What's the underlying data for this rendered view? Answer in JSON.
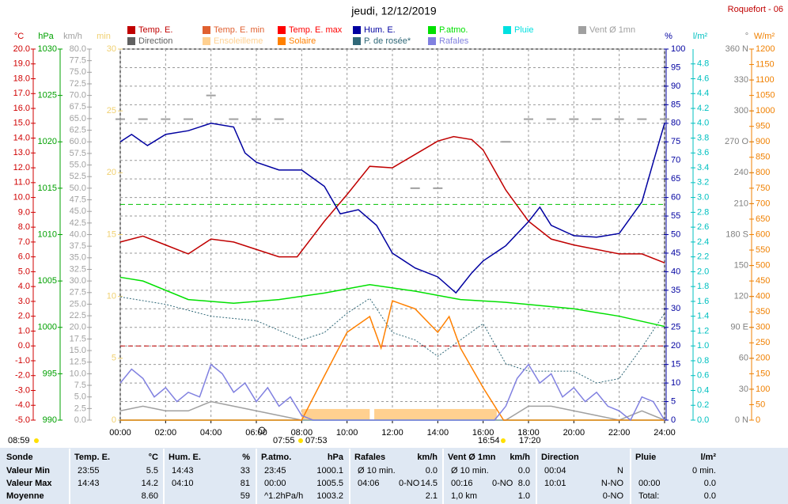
{
  "chart_data": {
    "type": "line",
    "title": "jeudi, 12/12/2019",
    "station": "Roquefort - 06",
    "xlim": [
      0,
      24
    ],
    "xticks": [
      {
        "value": 0,
        "label": "00:00"
      },
      {
        "value": 2,
        "label": "02:00"
      },
      {
        "value": 4,
        "label": "04:00"
      },
      {
        "value": 6,
        "label": "06:00"
      },
      {
        "value": 8,
        "label": "08:00"
      },
      {
        "value": 10,
        "label": "10:00"
      },
      {
        "value": 12,
        "label": "12:00"
      },
      {
        "value": 14,
        "label": "14:00"
      },
      {
        "value": 16,
        "label": "16:00"
      },
      {
        "value": 18,
        "label": "18:00"
      },
      {
        "value": 20,
        "label": "20:00"
      },
      {
        "value": 22,
        "label": "22:00"
      },
      {
        "value": 24,
        "label": "24:00"
      }
    ],
    "grid": true,
    "y_label": "°C",
    "y_color": "#d00000",
    "ylim": [
      -5,
      20
    ],
    "yticks": [
      {
        "value": -5,
        "label": "-5.0"
      },
      {
        "value": -4,
        "label": "-4.0"
      },
      {
        "value": -3,
        "label": "-3.0"
      },
      {
        "value": -2,
        "label": "-2.0"
      },
      {
        "value": -1,
        "label": "-1.0"
      },
      {
        "value": 0,
        "label": "0.0"
      },
      {
        "value": 1,
        "label": "1.0"
      },
      {
        "value": 2,
        "label": "2.0"
      },
      {
        "value": 3,
        "label": "3.0"
      },
      {
        "value": 4,
        "label": "4.0"
      },
      {
        "value": 5,
        "label": "5.0"
      },
      {
        "value": 6,
        "label": "6.0"
      },
      {
        "value": 7,
        "label": "7.0"
      },
      {
        "value": 8,
        "label": "8.0"
      },
      {
        "value": 9,
        "label": "9.0"
      },
      {
        "value": 10,
        "label": "10.0"
      },
      {
        "value": 11,
        "label": "11.0"
      },
      {
        "value": 12,
        "label": "12.0"
      },
      {
        "value": 13,
        "label": "13.0"
      },
      {
        "value": 14,
        "label": "14.0"
      },
      {
        "value": 15,
        "label": "15.0"
      },
      {
        "value": 16,
        "label": "16.0"
      },
      {
        "value": 17,
        "label": "17.0"
      },
      {
        "value": 18,
        "label": "18.0"
      },
      {
        "value": 19,
        "label": "19.0"
      },
      {
        "value": 20,
        "label": "20.0"
      }
    ],
    "y2_label": "hPa",
    "y2_color": "#00a000",
    "y2lim": [
      990,
      1030
    ],
    "y2ticks": [
      990,
      995,
      1000,
      1005,
      1010,
      1015,
      1020,
      1025,
      1030
    ],
    "y3_label": "km/h",
    "y3_color": "#a0a0a0",
    "y3lim": [
      0,
      80
    ],
    "y3ticks": [
      {
        "value": 0,
        "label": "0.0"
      },
      {
        "value": 2.5,
        "label": "2.5"
      },
      {
        "value": 5,
        "label": "5.0"
      },
      {
        "value": 7.5,
        "label": "7.5"
      },
      {
        "value": 10,
        "label": "10.0"
      },
      {
        "value": 12.5,
        "label": "12.5"
      },
      {
        "value": 15,
        "label": "15.0"
      },
      {
        "value": 17.5,
        "label": "17.5"
      },
      {
        "value": 20,
        "label": "20.0"
      },
      {
        "value": 22.5,
        "label": "22.5"
      },
      {
        "value": 25,
        "label": "25.0"
      },
      {
        "value": 27.5,
        "label": "27.5"
      },
      {
        "value": 30,
        "label": "30.0"
      },
      {
        "value": 32.5,
        "label": "32.5"
      },
      {
        "value": 35,
        "label": "35.0"
      },
      {
        "value": 37.5,
        "label": "37.5"
      },
      {
        "value": 40,
        "label": "40.0"
      },
      {
        "value": 42.5,
        "label": "42.5"
      },
      {
        "value": 45,
        "label": "45.0"
      },
      {
        "value": 47.5,
        "label": "47.5"
      },
      {
        "value": 50,
        "label": "50.0"
      },
      {
        "value": 52.5,
        "label": "52.5"
      },
      {
        "value": 55,
        "label": "55.0"
      },
      {
        "value": 57.5,
        "label": "57.5"
      },
      {
        "value": 60,
        "label": "60.0"
      },
      {
        "value": 62.5,
        "label": "62.5"
      },
      {
        "value": 65,
        "label": "65.0"
      },
      {
        "value": 67.5,
        "label": "67.5"
      },
      {
        "value": 70,
        "label": "70.0"
      },
      {
        "value": 72.5,
        "label": "72.5"
      },
      {
        "value": 75,
        "label": "75.0"
      },
      {
        "value": 77.5,
        "label": "77.5"
      },
      {
        "value": 80,
        "label": "80.0"
      }
    ],
    "y4_label": "min",
    "y4_color": "#f0d070",
    "y4lim": [
      0,
      30
    ],
    "y4ticks": [
      0,
      5,
      10,
      15,
      20,
      25,
      30
    ],
    "y5_label": "%",
    "y5_color": "#0000a0",
    "y5lim": [
      0,
      100
    ],
    "y5ticks": [
      0,
      5,
      10,
      15,
      20,
      25,
      30,
      35,
      40,
      45,
      50,
      55,
      60,
      65,
      70,
      75,
      80,
      85,
      90,
      95,
      100
    ],
    "y6_label": "l/m²",
    "y6_color": "#00c0c0",
    "y6lim": [
      0,
      5
    ],
    "y6ticks": [
      {
        "value": 0,
        "label": "0.0"
      },
      {
        "value": 0.2,
        "label": "0.2"
      },
      {
        "value": 0.4,
        "label": "0.4"
      },
      {
        "value": 0.6,
        "label": "0.6"
      },
      {
        "value": 0.8,
        "label": "0.8"
      },
      {
        "value": 1,
        "label": "1.0"
      },
      {
        "value": 1.2,
        "label": "1.2"
      },
      {
        "value": 1.4,
        "label": "1.4"
      },
      {
        "value": 1.6,
        "label": "1.6"
      },
      {
        "value": 1.8,
        "label": "1.8"
      },
      {
        "value": 2,
        "label": "2.0"
      },
      {
        "value": 2.2,
        "label": "2.2"
      },
      {
        "value": 2.4,
        "label": "2.4"
      },
      {
        "value": 2.6,
        "label": "2.6"
      },
      {
        "value": 2.8,
        "label": "2.8"
      },
      {
        "value": 3,
        "label": "3.0"
      },
      {
        "value": 3.2,
        "label": "3.2"
      },
      {
        "value": 3.4,
        "label": "3.4"
      },
      {
        "value": 3.6,
        "label": "3.6"
      },
      {
        "value": 3.8,
        "label": "3.8"
      },
      {
        "value": 4,
        "label": "4.0"
      },
      {
        "value": 4.2,
        "label": "4.2"
      },
      {
        "value": 4.4,
        "label": "4.4"
      },
      {
        "value": 4.6,
        "label": "4.6"
      },
      {
        "value": 4.8,
        "label": "4.8"
      }
    ],
    "y7_label": "°",
    "y7_color": "#808080",
    "y7lim": [
      0,
      360
    ],
    "y7ticks": [
      {
        "value": 0,
        "label": "0 N"
      },
      30,
      60,
      {
        "value": 90,
        "label": "90 E"
      },
      120,
      150,
      {
        "value": 180,
        "label": "180 S"
      },
      210,
      240,
      {
        "value": 270,
        "label": "270 O"
      },
      300,
      330,
      {
        "value": 360,
        "label": "360 N"
      }
    ],
    "y8_label": "W/m²",
    "y8_color": "#f08000",
    "y8lim": [
      0,
      1200
    ],
    "y8ticks": [
      0,
      50,
      100,
      150,
      200,
      250,
      300,
      350,
      400,
      450,
      500,
      550,
      600,
      650,
      700,
      750,
      800,
      850,
      900,
      950,
      1000,
      1050,
      1100,
      1150,
      1200
    ],
    "reference_lines": [
      {
        "axis": "y2",
        "value": 1013.25,
        "color": "#00c000"
      },
      {
        "axis": "y",
        "value": 0,
        "color": "#c00000"
      }
    ],
    "series": [
      {
        "name": "Temp. E.",
        "color": "#c00000",
        "axis": "y",
        "type": "line",
        "x": [
          0,
          1,
          2,
          3,
          4,
          5,
          6,
          7,
          7.8,
          8,
          9,
          10,
          11,
          12,
          13,
          14,
          14.7,
          15.5,
          16,
          17,
          18,
          19,
          20,
          21,
          22,
          23,
          24
        ],
        "values": [
          7.0,
          7.4,
          6.8,
          6.2,
          7.2,
          7.0,
          6.5,
          6.0,
          6.0,
          6.4,
          8.4,
          10.2,
          12.1,
          12.0,
          12.9,
          13.8,
          14.1,
          13.9,
          13.2,
          10.5,
          8.4,
          7.2,
          6.8,
          6.5,
          6.2,
          6.2,
          5.6
        ]
      },
      {
        "name": "Temp. E. min",
        "color": "#e06030",
        "axis": "y",
        "type": "line",
        "x": [],
        "values": []
      },
      {
        "name": "Temp. E. max",
        "color": "#ff0000",
        "axis": "y",
        "type": "line",
        "x": [],
        "values": []
      },
      {
        "name": "Hum. E.",
        "color": "#0000a0",
        "axis": "y5",
        "type": "line",
        "x": [
          0,
          0.5,
          1.2,
          2,
          3,
          4,
          5,
          5.5,
          6,
          7,
          8,
          9,
          9.7,
          10.5,
          11.3,
          12,
          13,
          14,
          14.8,
          15.5,
          16,
          17,
          18,
          18.5,
          19,
          20,
          21,
          22,
          23,
          23.5,
          24
        ],
        "values": [
          75,
          77,
          74,
          77,
          78,
          80,
          79,
          72,
          69.5,
          67.4,
          67.4,
          63,
          55.6,
          56.7,
          52.5,
          45,
          41,
          38.6,
          34.3,
          39.7,
          42.9,
          47,
          53.5,
          57.4,
          52.5,
          49.7,
          49.3,
          50.3,
          58.8,
          69.5,
          80
        ]
      },
      {
        "name": "P.atmo.",
        "color": "#00e000",
        "axis": "y2",
        "type": "line",
        "x": [
          0,
          1,
          3,
          5,
          7,
          9,
          11,
          13,
          15,
          17,
          20,
          22,
          24
        ],
        "values": [
          1005.4,
          1005.0,
          1003.0,
          1002.6,
          1003.0,
          1003.7,
          1004.6,
          1003.9,
          1003.0,
          1002.7,
          1002.0,
          1001.2,
          1000.1
        ]
      },
      {
        "name": "Pluie",
        "color": "#00e0e0",
        "axis": "y6",
        "type": "line",
        "x": [
          0,
          24
        ],
        "values": [
          0,
          0
        ]
      },
      {
        "name": "Vent Ø 1mn",
        "color": "#a0a0a0",
        "axis": "y3",
        "type": "line",
        "x": [
          0,
          1,
          2,
          3,
          4,
          5,
          6,
          7,
          8,
          9,
          10,
          11,
          12,
          13,
          14,
          15,
          16,
          17,
          18,
          19,
          20,
          21,
          22,
          23,
          24
        ],
        "values": [
          2,
          3,
          2,
          2,
          4,
          3,
          2,
          1,
          0,
          0,
          0,
          0,
          0,
          0,
          0,
          0,
          0,
          0,
          3,
          3,
          2,
          1,
          0,
          2,
          0
        ]
      },
      {
        "name": "Direction",
        "color": "#606060",
        "axis": "y7",
        "type": "scatter",
        "x": [
          0,
          1,
          2,
          3,
          4,
          5,
          6,
          7,
          13,
          14,
          17,
          18,
          19,
          20,
          21,
          22,
          23,
          24
        ],
        "values": [
          292,
          292,
          292,
          292,
          315,
          292,
          292,
          292,
          225,
          225,
          270,
          292,
          292,
          292,
          292,
          292,
          292,
          292
        ]
      },
      {
        "name": "Ensoleilleme",
        "color": "#ffd090",
        "axis": "y4",
        "type": "spans",
        "x": [
          8,
          11.2
        ],
        "x_end": [
          11,
          16.6
        ],
        "values": [
          0.9,
          0.9
        ]
      },
      {
        "name": "Solaire",
        "color": "#ff8000",
        "axis": "y8",
        "type": "line",
        "x": [
          0,
          8,
          9,
          10,
          11,
          11.5,
          12,
          13,
          14,
          14.5,
          15,
          16,
          16.9,
          24
        ],
        "values": [
          0,
          0,
          143,
          284,
          335,
          233,
          386,
          360,
          284,
          335,
          233,
          105,
          0,
          0
        ]
      },
      {
        "name": "P. de rosée*",
        "color": "#306878",
        "axis": "y",
        "type": "dotted",
        "x": [
          0,
          2,
          4,
          6,
          8,
          9,
          10,
          11,
          12,
          13,
          14,
          15,
          16,
          17,
          18,
          20,
          21,
          22,
          23,
          24
        ],
        "values": [
          3.3,
          2.8,
          2.0,
          1.7,
          0.4,
          0.9,
          2.2,
          3.2,
          0.9,
          0.4,
          -0.7,
          0.4,
          1.5,
          -1.2,
          -1.7,
          -1.7,
          -2.5,
          -2.2,
          -0.1,
          2.2
        ]
      },
      {
        "name": "Rafales",
        "color": "#8080e0",
        "axis": "y3",
        "type": "line",
        "x": [
          0,
          0.5,
          1,
          1.5,
          2,
          2.5,
          3,
          3.5,
          4,
          4.5,
          5,
          5.5,
          6,
          6.5,
          7,
          7.5,
          8,
          8.5,
          9,
          9.5,
          10,
          10.5,
          11,
          11.5,
          12,
          12.5,
          13,
          13.5,
          14,
          14.5,
          15,
          15.5,
          16,
          16.5,
          17,
          17.5,
          18,
          18.5,
          19,
          19.5,
          20,
          20.5,
          21,
          21.5,
          22,
          22.5,
          23,
          23.5,
          24
        ],
        "values": [
          8,
          11,
          9,
          5,
          7,
          4,
          6,
          5,
          12,
          10,
          6,
          8,
          4,
          7,
          3,
          5,
          1,
          0,
          0,
          0,
          0,
          0,
          0,
          0,
          0,
          0,
          0,
          0,
          0,
          0,
          0,
          0,
          0,
          0,
          3,
          9,
          12,
          8,
          10,
          5,
          7,
          4,
          6,
          3,
          2,
          0,
          5,
          4,
          0
        ]
      }
    ],
    "time_labels": [
      "08:59",
      "07:55",
      "07:53",
      "16:54",
      "17:20"
    ]
  },
  "table": {
    "header": [
      [
        "Sonde"
      ],
      [
        "Temp. E.",
        "°C"
      ],
      [
        "Hum. E.",
        "%"
      ],
      [
        "P.atmo.",
        "hPa"
      ],
      [
        "Rafales",
        "km/h"
      ],
      [
        "Vent Ø 1mn",
        "km/h"
      ],
      [
        "Direction"
      ],
      [
        "Pluie",
        "l/m²"
      ]
    ],
    "rows": [
      {
        "label": "Valeur Min",
        "cells": [
          [
            "23:55",
            "5.5"
          ],
          [
            "14:43",
            "33"
          ],
          [
            "23:45",
            "1000.1"
          ],
          [
            "Ø 10 min.",
            "0.0"
          ],
          [
            "Ø 10 min.",
            "0.0"
          ],
          [
            "00:04",
            "N"
          ],
          [
            "0 min."
          ]
        ]
      },
      {
        "label": "Valeur Max",
        "cells": [
          [
            "14:43",
            "14.2"
          ],
          [
            "04:10",
            "81"
          ],
          [
            "00:00",
            "1005.5"
          ],
          [
            "04:06",
            "0-NO",
            "14.5"
          ],
          [
            "00:16",
            "0-NO",
            "8.0"
          ],
          [
            "10:01",
            "N-NO"
          ],
          [
            "00:00",
            "0.0"
          ]
        ]
      },
      {
        "label": "Moyenne",
        "cells": [
          [
            "8.60"
          ],
          [
            "59"
          ],
          [
            "^1.2hPa/h",
            "1003.2"
          ],
          [
            "2.1"
          ],
          [
            "1,0 km",
            "1.0"
          ],
          [
            "0-NO"
          ],
          [
            "Total:",
            "0.0"
          ]
        ]
      }
    ]
  }
}
